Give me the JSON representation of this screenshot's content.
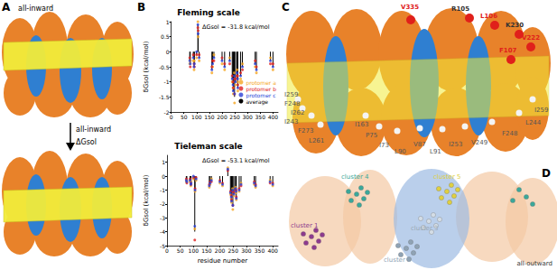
{
  "panels": {
    "A": {
      "letter": "A",
      "top_label": "all-inward",
      "bottom_label": "all-inward",
      "arrow_label": "ΔGsol"
    },
    "B": {
      "letter": "B"
    },
    "C": {
      "letter": "C",
      "labels": [
        {
          "text": "V335",
          "color": "#e0201b"
        },
        {
          "text": "R105",
          "color": "#333333"
        },
        {
          "text": "L106",
          "color": "#e0201b"
        },
        {
          "text": "K230",
          "color": "#333333"
        },
        {
          "text": "V222",
          "color": "#e0201b"
        },
        {
          "text": "F107",
          "color": "#e0201b"
        },
        {
          "text": "I259",
          "color": "#555555"
        },
        {
          "text": "F248",
          "color": "#555555"
        },
        {
          "text": "I262",
          "color": "#555555"
        },
        {
          "text": "I243",
          "color": "#555555"
        },
        {
          "text": "F273",
          "color": "#555555"
        },
        {
          "text": "L261",
          "color": "#555555"
        },
        {
          "text": "I163",
          "color": "#555555"
        },
        {
          "text": "P75",
          "color": "#555555"
        },
        {
          "text": "I73",
          "color": "#555555"
        },
        {
          "text": "L90",
          "color": "#555555"
        },
        {
          "text": "V87",
          "color": "#555555"
        },
        {
          "text": "L91",
          "color": "#555555"
        },
        {
          "text": "I253",
          "color": "#555555"
        },
        {
          "text": "V249",
          "color": "#555555"
        },
        {
          "text": "F248",
          "color": "#555555"
        },
        {
          "text": "L244",
          "color": "#555555"
        },
        {
          "text": "I259",
          "color": "#555555"
        }
      ]
    },
    "D": {
      "letter": "D",
      "label": "all-outward",
      "clusters": [
        {
          "label": "cluster 1",
          "color": "#8e3a8e"
        },
        {
          "label": "cluster 2",
          "color": "#8fa3b5"
        },
        {
          "label": "cluster 3",
          "color": "#d4dde6"
        },
        {
          "label": "cluster 4",
          "color": "#3aa89a"
        },
        {
          "label": "cluster 5",
          "color": "#e0d040"
        }
      ]
    }
  },
  "chart_data": [
    {
      "type": "scatter",
      "title": "Fleming scale",
      "annotation": "ΔGsol = -31.8 kcal/mol",
      "ylabel": "δGsol (kcal/mol)",
      "legend": "bottom-right",
      "grid": false,
      "x": [
        73,
        75,
        87,
        90,
        91,
        100,
        105,
        106,
        110,
        160,
        163,
        168,
        200,
        210,
        230,
        240,
        243,
        244,
        248,
        249,
        253,
        259,
        261,
        262,
        273,
        280,
        330,
        335,
        390,
        400
      ],
      "xlim": [
        0,
        420
      ],
      "xticks": [
        0,
        50,
        100,
        150,
        200,
        250,
        300,
        350,
        400
      ],
      "ylim": [
        -2,
        1
      ],
      "yticks": [
        -2,
        -1.5,
        -1,
        -0.5,
        0,
        0.5,
        1
      ],
      "series": [
        {
          "name": "protomer a",
          "color": "#f5a623",
          "marker": "circle",
          "values": [
            -0.4,
            -0.3,
            -0.3,
            -0.6,
            -0.3,
            -0.2,
            1.0,
            0.5,
            -0.3,
            -0.7,
            -0.5,
            -0.1,
            -0.4,
            -0.6,
            -0.2,
            -1.0,
            -1.2,
            -1.4,
            -0.7,
            -1.7,
            -1.1,
            -0.6,
            -1.0,
            -1.3,
            -0.9,
            -0.4,
            -0.5,
            -0.7,
            -0.2,
            -0.6
          ]
        },
        {
          "name": "protomer b",
          "color": "#e02020",
          "marker": "circle",
          "values": [
            -0.2,
            -0.5,
            -0.1,
            -0.4,
            -0.5,
            -0.1,
            0.8,
            0.7,
            -0.1,
            -0.5,
            -0.3,
            -0.3,
            -0.2,
            -0.4,
            -0.4,
            -0.8,
            -1.0,
            -1.2,
            -0.9,
            -1.4,
            -0.9,
            -0.8,
            -0.8,
            -1.1,
            -0.7,
            -0.6,
            -0.3,
            -0.5,
            -0.4,
            -0.4
          ]
        },
        {
          "name": "protomer c",
          "color": "#2a3fd6",
          "marker": "circle",
          "values": [
            -0.3,
            -0.4,
            -0.2,
            -0.5,
            -0.4,
            0.0,
            0.9,
            0.6,
            -0.2,
            -0.6,
            -0.4,
            -0.2,
            -0.3,
            -0.5,
            -0.3,
            -0.9,
            -1.1,
            -1.3,
            -0.8,
            -1.4,
            -1.0,
            -0.7,
            -0.9,
            -1.2,
            -0.8,
            -0.5,
            -0.4,
            -0.6,
            -0.3,
            -0.5
          ]
        },
        {
          "name": "average",
          "color": "#000000",
          "type": "bar",
          "values": [
            -0.3,
            -0.4,
            -0.2,
            -0.5,
            -0.4,
            -0.1,
            0.9,
            0.6,
            -0.2,
            -0.6,
            -0.4,
            -0.2,
            -0.3,
            -0.5,
            -0.3,
            -0.9,
            -1.1,
            -1.3,
            -0.8,
            -1.5,
            -1.0,
            -0.7,
            -0.9,
            -1.2,
            -0.8,
            -0.5,
            -0.4,
            -0.6,
            -0.3,
            -0.5
          ]
        }
      ]
    },
    {
      "type": "scatter",
      "title": "Tieleman scale",
      "annotation": "ΔGsol = -53.1 kcal/mol",
      "ylabel": "δGsol (kcal/mol)",
      "xlabel": "residue number",
      "grid": false,
      "x": [
        73,
        75,
        87,
        90,
        91,
        100,
        105,
        106,
        110,
        160,
        163,
        168,
        200,
        210,
        230,
        240,
        243,
        244,
        248,
        249,
        253,
        259,
        261,
        262,
        273,
        280,
        330,
        335,
        390,
        400
      ],
      "xlim": [
        0,
        420
      ],
      "xticks": [
        0,
        50,
        100,
        150,
        200,
        250,
        300,
        350,
        400
      ],
      "ylim": [
        -5,
        1.5
      ],
      "yticks": [
        -5,
        -4,
        -3,
        -2,
        -1,
        0,
        1
      ],
      "series": [
        {
          "name": "protomer a",
          "color": "#f5a623",
          "marker": "circle",
          "values": [
            -0.4,
            -0.3,
            -0.4,
            -0.7,
            -0.4,
            -0.2,
            -3.8,
            -1.1,
            -0.3,
            -0.8,
            -0.6,
            -0.2,
            -0.5,
            -0.7,
            0.6,
            -1.3,
            -1.6,
            -1.9,
            -0.9,
            -2.4,
            -1.4,
            -0.8,
            -1.2,
            -1.7,
            -1.1,
            -0.5,
            -0.6,
            -0.8,
            -0.3,
            -0.7
          ]
        },
        {
          "name": "protomer b",
          "color": "#e02020",
          "marker": "circle",
          "values": [
            -0.2,
            -0.5,
            -0.2,
            -0.5,
            -0.6,
            -0.1,
            -4.6,
            -0.9,
            -0.1,
            -0.6,
            -0.4,
            -0.4,
            -0.3,
            -0.5,
            0.4,
            -1.1,
            -1.4,
            -1.7,
            -1.1,
            -2.1,
            -1.2,
            -1.0,
            -1.0,
            -1.5,
            -0.9,
            -0.7,
            -0.4,
            -0.6,
            -0.5,
            -0.5
          ]
        },
        {
          "name": "protomer c",
          "color": "#2a3fd6",
          "marker": "circle",
          "values": [
            -0.3,
            -0.4,
            -0.3,
            -0.6,
            -0.5,
            0.0,
            -3.6,
            -1.0,
            -0.2,
            -0.7,
            -0.5,
            -0.3,
            -0.4,
            -0.6,
            0.5,
            -1.2,
            -1.5,
            -1.8,
            -1.0,
            -2.1,
            -1.3,
            -0.9,
            -1.1,
            -1.6,
            -1.0,
            -0.6,
            -0.5,
            -0.7,
            -0.4,
            -0.6
          ]
        },
        {
          "name": "average",
          "color": "#000000",
          "type": "bar",
          "values": [
            -0.3,
            -0.4,
            -0.3,
            -0.6,
            -0.5,
            -0.1,
            -4.0,
            -1.0,
            -0.2,
            -0.7,
            -0.5,
            -0.3,
            -0.4,
            -0.6,
            0.5,
            -1.2,
            -1.5,
            -1.8,
            -1.0,
            -2.2,
            -1.3,
            -0.9,
            -1.1,
            -1.6,
            -1.0,
            -0.6,
            -0.5,
            -0.7,
            -0.4,
            -0.6
          ]
        }
      ]
    }
  ]
}
